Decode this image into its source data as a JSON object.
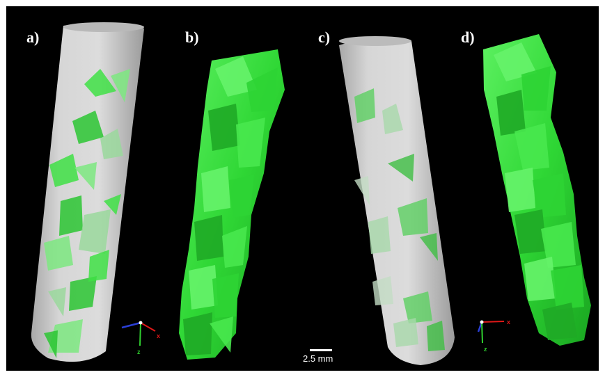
{
  "panels": [
    {
      "id": "a",
      "label": "a)"
    },
    {
      "id": "b",
      "label": "b)"
    },
    {
      "id": "c",
      "label": "c)"
    },
    {
      "id": "d",
      "label": "d)"
    }
  ],
  "scale_bar": {
    "text": "2.5 mm"
  },
  "axes": {
    "x_label": "x",
    "z_label": "z"
  },
  "colors": {
    "background": "#000000",
    "tube": "#cfcfcf",
    "crystal": "#33e33a",
    "crystal_dark": "#18a81f",
    "axis_x": "#e01818",
    "axis_y": "#2a3fd6",
    "axis_z": "#2fd02f"
  }
}
